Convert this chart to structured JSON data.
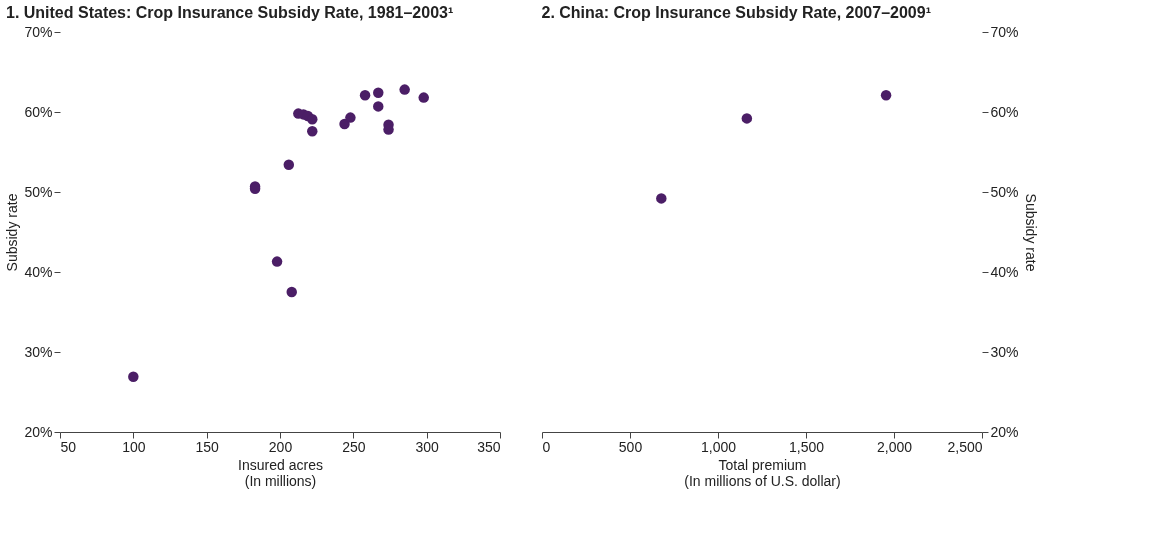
{
  "chart_data": [
    {
      "type": "scatter",
      "title": "1. United States: Crop Insurance Subsidy Rate, 1981–2003¹",
      "xlabel": "Insured acres\n(In millions)",
      "ylabel": "Subsidy rate",
      "x": [
        100,
        183,
        183,
        198,
        208,
        206,
        212.5,
        216,
        219,
        222,
        222,
        244,
        248,
        258,
        267,
        267,
        274,
        274,
        285,
        298
      ],
      "series": [
        {
          "color": "#4b1e66",
          "values": [
            26.9,
            50.7,
            50.4,
            41.3,
            37.5,
            53.4,
            59.8,
            59.7,
            59.5,
            59.1,
            57.6,
            58.5,
            59.3,
            62.1,
            62.4,
            60.7,
            58.4,
            57.8,
            62.8,
            61.8
          ]
        }
      ],
      "xlim": [
        50,
        350
      ],
      "xticks": [
        50,
        100,
        150,
        200,
        250,
        300,
        350
      ],
      "ylim": [
        20,
        70
      ],
      "yticks": [
        {
          "value": 20,
          "label": "20%"
        },
        {
          "value": 30,
          "label": "30%"
        },
        {
          "value": 40,
          "label": "40%"
        },
        {
          "value": 50,
          "label": "50%"
        },
        {
          "value": 60,
          "label": "60%"
        },
        {
          "value": 70,
          "label": "70%"
        }
      ],
      "grid": false,
      "legend": false,
      "marker": "circle"
    },
    {
      "type": "scatter",
      "title": "2. China: Crop Insurance Subsidy Rate, 2007–2009¹",
      "xlabel": "Total premium\n(In millions of U.S. dollar)",
      "y2label": "Subsidy rate",
      "x": [
        678,
        1164,
        1955
      ],
      "series": [
        {
          "color": "#4b1e66",
          "axis": "y2",
          "values": [
            49.2,
            59.2,
            62.1
          ]
        }
      ],
      "xlim": [
        0,
        2500
      ],
      "xticks": [
        0,
        {
          "value": 500,
          "label": "500"
        },
        {
          "value": 1000,
          "label": "1,000"
        },
        {
          "value": 1500,
          "label": "1,500"
        },
        {
          "value": 2000,
          "label": "2,000"
        },
        {
          "value": 2500,
          "label": "2,500"
        }
      ],
      "y2lim": [
        20,
        70
      ],
      "y2ticks": [
        {
          "value": 20,
          "label": "20%"
        },
        {
          "value": 30,
          "label": "30%"
        },
        {
          "value": 40,
          "label": "40%"
        },
        {
          "value": 50,
          "label": "50%"
        },
        {
          "value": 60,
          "label": "60%"
        },
        {
          "value": 70,
          "label": "70%"
        }
      ],
      "grid": false,
      "legend": false,
      "marker": "circle"
    }
  ]
}
